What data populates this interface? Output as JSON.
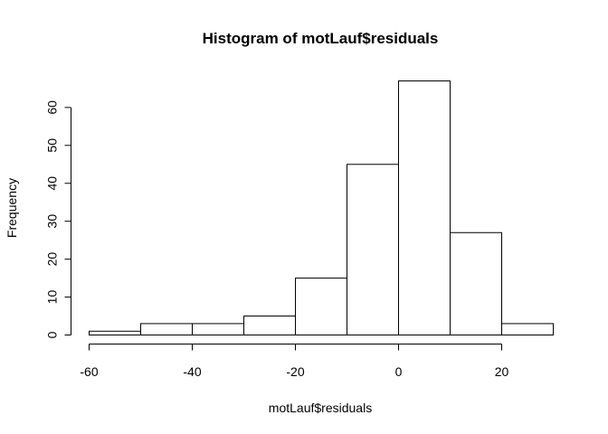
{
  "chart_data": {
    "type": "bar",
    "title": "Histogram of motLauf$residuals",
    "xlabel": "motLauf$residuals",
    "ylabel": "Frequency",
    "bins": [
      {
        "start": -60,
        "end": -50,
        "count": 1
      },
      {
        "start": -50,
        "end": -40,
        "count": 3
      },
      {
        "start": -40,
        "end": -30,
        "count": 3
      },
      {
        "start": -30,
        "end": -20,
        "count": 5
      },
      {
        "start": -20,
        "end": -10,
        "count": 15
      },
      {
        "start": -10,
        "end": 0,
        "count": 45
      },
      {
        "start": 0,
        "end": 10,
        "count": 67
      },
      {
        "start": 10,
        "end": 20,
        "count": 27
      },
      {
        "start": 20,
        "end": 30,
        "count": 3
      }
    ],
    "xlim": [
      -60,
      30
    ],
    "ylim": [
      0,
      67
    ],
    "x_ticks": [
      -60,
      -40,
      -20,
      0,
      20
    ],
    "y_ticks": [
      0,
      10,
      20,
      30,
      40,
      50,
      60
    ],
    "grid": false,
    "bar_fill": "#ffffff",
    "bar_stroke": "#000000"
  }
}
